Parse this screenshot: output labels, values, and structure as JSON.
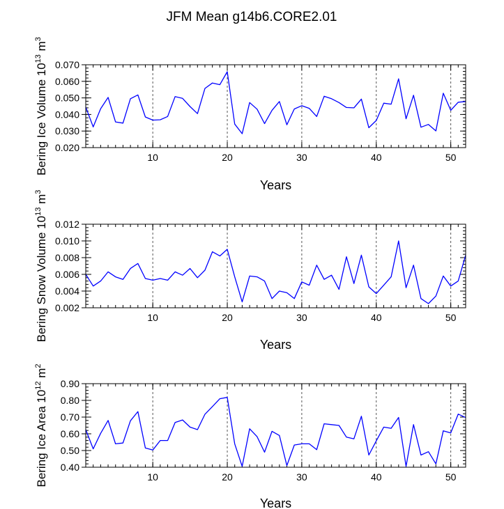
{
  "title": "JFM Mean g14b6.CORE2.01",
  "colors": {
    "line": "#0000ff",
    "axis": "#000000",
    "grid": "#555555"
  },
  "chart_data": [
    {
      "type": "line",
      "ylabel": "Bering Ice Volume 10",
      "ylabel_exp": "13",
      "ylabel_unit": "m",
      "ylabel_unit_exp": "3",
      "xlabel": "Years",
      "xlim": [
        1,
        52
      ],
      "ylim": [
        0.02,
        0.07
      ],
      "xticks": [
        10,
        20,
        30,
        40,
        50
      ],
      "yticks": [
        0.02,
        0.03,
        0.04,
        0.05,
        0.06,
        0.07
      ],
      "ytick_labels": [
        "0.020",
        "0.030",
        "0.040",
        "0.050",
        "0.060",
        "0.070"
      ],
      "grid_x": [
        10,
        20,
        30,
        40,
        50
      ],
      "x": [
        1,
        2,
        3,
        4,
        5,
        6,
        7,
        8,
        9,
        10,
        11,
        12,
        13,
        14,
        15,
        16,
        17,
        18,
        19,
        20,
        21,
        22,
        23,
        24,
        25,
        26,
        27,
        28,
        29,
        30,
        31,
        32,
        33,
        34,
        35,
        36,
        37,
        38,
        39,
        40,
        41,
        42,
        43,
        44,
        45,
        46,
        47,
        48,
        49,
        50,
        51,
        52
      ],
      "values": [
        0.0445,
        0.0325,
        0.0435,
        0.0503,
        0.0355,
        0.0348,
        0.0495,
        0.0518,
        0.0385,
        0.0366,
        0.0368,
        0.0388,
        0.0508,
        0.0497,
        0.0448,
        0.0405,
        0.0557,
        0.059,
        0.058,
        0.0658,
        0.0342,
        0.0284,
        0.0472,
        0.0432,
        0.0345,
        0.0425,
        0.0478,
        0.0338,
        0.0433,
        0.0453,
        0.0437,
        0.0388,
        0.051,
        0.0495,
        0.0472,
        0.0442,
        0.044,
        0.0493,
        0.032,
        0.0364,
        0.0468,
        0.0462,
        0.0615,
        0.0374,
        0.0516,
        0.0323,
        0.034,
        0.0301,
        0.0528,
        0.0425,
        0.0474,
        0.0478
      ]
    },
    {
      "type": "line",
      "ylabel": "Bering Snow Volume 10",
      "ylabel_exp": "13",
      "ylabel_unit": "m",
      "ylabel_unit_exp": "3",
      "xlabel": "Years",
      "xlim": [
        1,
        52
      ],
      "ylim": [
        0.002,
        0.012
      ],
      "xticks": [
        10,
        20,
        30,
        40,
        50
      ],
      "yticks": [
        0.002,
        0.004,
        0.006,
        0.008,
        0.01,
        0.012
      ],
      "ytick_labels": [
        "0.002",
        "0.004",
        "0.006",
        "0.008",
        "0.010",
        "0.012"
      ],
      "grid_x": [
        10,
        20,
        30,
        40,
        50
      ],
      "x": [
        1,
        2,
        3,
        4,
        5,
        6,
        7,
        8,
        9,
        10,
        11,
        12,
        13,
        14,
        15,
        16,
        17,
        18,
        19,
        20,
        21,
        22,
        23,
        24,
        25,
        26,
        27,
        28,
        29,
        30,
        31,
        32,
        33,
        34,
        35,
        36,
        37,
        38,
        39,
        40,
        41,
        42,
        43,
        44,
        45,
        46,
        47,
        48,
        49,
        50,
        51,
        52
      ],
      "values": [
        0.006,
        0.0046,
        0.0052,
        0.0063,
        0.0057,
        0.0054,
        0.0067,
        0.0073,
        0.0055,
        0.0053,
        0.0055,
        0.0053,
        0.0063,
        0.0059,
        0.0067,
        0.0056,
        0.0065,
        0.0087,
        0.0082,
        0.009,
        0.0057,
        0.0027,
        0.0058,
        0.0057,
        0.0052,
        0.0031,
        0.004,
        0.0038,
        0.0031,
        0.0051,
        0.0047,
        0.0071,
        0.0054,
        0.0059,
        0.0042,
        0.0081,
        0.0049,
        0.0083,
        0.0045,
        0.0037,
        0.0047,
        0.0057,
        0.01,
        0.0044,
        0.0071,
        0.0031,
        0.0025,
        0.0034,
        0.0058,
        0.0046,
        0.0052,
        0.0083
      ]
    },
    {
      "type": "line",
      "ylabel": "Bering Ice Area 10",
      "ylabel_exp": "12",
      "ylabel_unit": "m",
      "ylabel_unit_exp": "2",
      "xlabel": "Years",
      "xlim": [
        1,
        52
      ],
      "ylim": [
        0.4,
        0.9
      ],
      "xticks": [
        10,
        20,
        30,
        40,
        50
      ],
      "yticks": [
        0.4,
        0.5,
        0.6,
        0.7,
        0.8,
        0.9
      ],
      "ytick_labels": [
        "0.40",
        "0.50",
        "0.60",
        "0.70",
        "0.80",
        "0.90"
      ],
      "grid_x": [
        10,
        20,
        30,
        40,
        50
      ],
      "x": [
        1,
        2,
        3,
        4,
        5,
        6,
        7,
        8,
        9,
        10,
        11,
        12,
        13,
        14,
        15,
        16,
        17,
        18,
        19,
        20,
        21,
        22,
        23,
        24,
        25,
        26,
        27,
        28,
        29,
        30,
        31,
        32,
        33,
        34,
        35,
        36,
        37,
        38,
        39,
        40,
        41,
        42,
        43,
        44,
        45,
        46,
        47,
        48,
        49,
        50,
        51,
        52
      ],
      "values": [
        0.625,
        0.51,
        0.603,
        0.68,
        0.54,
        0.545,
        0.678,
        0.733,
        0.515,
        0.503,
        0.56,
        0.56,
        0.668,
        0.683,
        0.64,
        0.625,
        0.717,
        0.763,
        0.81,
        0.818,
        0.54,
        0.405,
        0.63,
        0.583,
        0.49,
        0.615,
        0.59,
        0.41,
        0.533,
        0.54,
        0.54,
        0.505,
        0.66,
        0.655,
        0.65,
        0.58,
        0.57,
        0.705,
        0.473,
        0.558,
        0.64,
        0.633,
        0.698,
        0.405,
        0.655,
        0.473,
        0.493,
        0.42,
        0.618,
        0.605,
        0.718,
        0.697
      ]
    }
  ]
}
